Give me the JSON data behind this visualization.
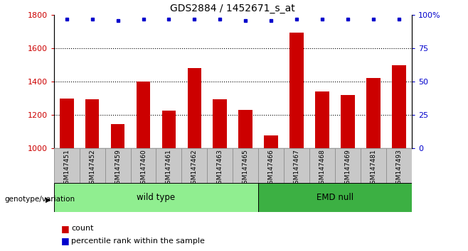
{
  "title": "GDS2884 / 1452671_s_at",
  "samples": [
    "GSM147451",
    "GSM147452",
    "GSM147459",
    "GSM147460",
    "GSM147461",
    "GSM147462",
    "GSM147463",
    "GSM147465",
    "GSM147466",
    "GSM147467",
    "GSM147468",
    "GSM147469",
    "GSM147481",
    "GSM147493"
  ],
  "counts": [
    1300,
    1295,
    1145,
    1400,
    1225,
    1480,
    1295,
    1230,
    1075,
    1695,
    1340,
    1320,
    1420,
    1500
  ],
  "percentiles": [
    97,
    97,
    96,
    97,
    97,
    97,
    97,
    96,
    96,
    97,
    97,
    97,
    97,
    97
  ],
  "ylim_left": [
    1000,
    1800
  ],
  "ylim_right": [
    0,
    100
  ],
  "yticks_left": [
    1000,
    1200,
    1400,
    1600,
    1800
  ],
  "yticks_right": [
    0,
    25,
    50,
    75,
    100
  ],
  "bar_color": "#cc0000",
  "dot_color": "#0000cc",
  "n_wild": 8,
  "n_emd": 6,
  "wild_type_label": "wild type",
  "emd_null_label": "EMD null",
  "genotype_label": "genotype/variation",
  "legend_count_label": "count",
  "legend_percentile_label": "percentile rank within the sample",
  "group_color_wild": "#90EE90",
  "group_color_emd": "#3CB043",
  "bg_color": "#ffffff",
  "tick_label_color_left": "#cc0000",
  "tick_label_color_right": "#0000cc",
  "title_fontsize": 10,
  "bar_width": 0.55,
  "sample_box_color": "#c8c8c8",
  "sample_box_edge": "#888888"
}
